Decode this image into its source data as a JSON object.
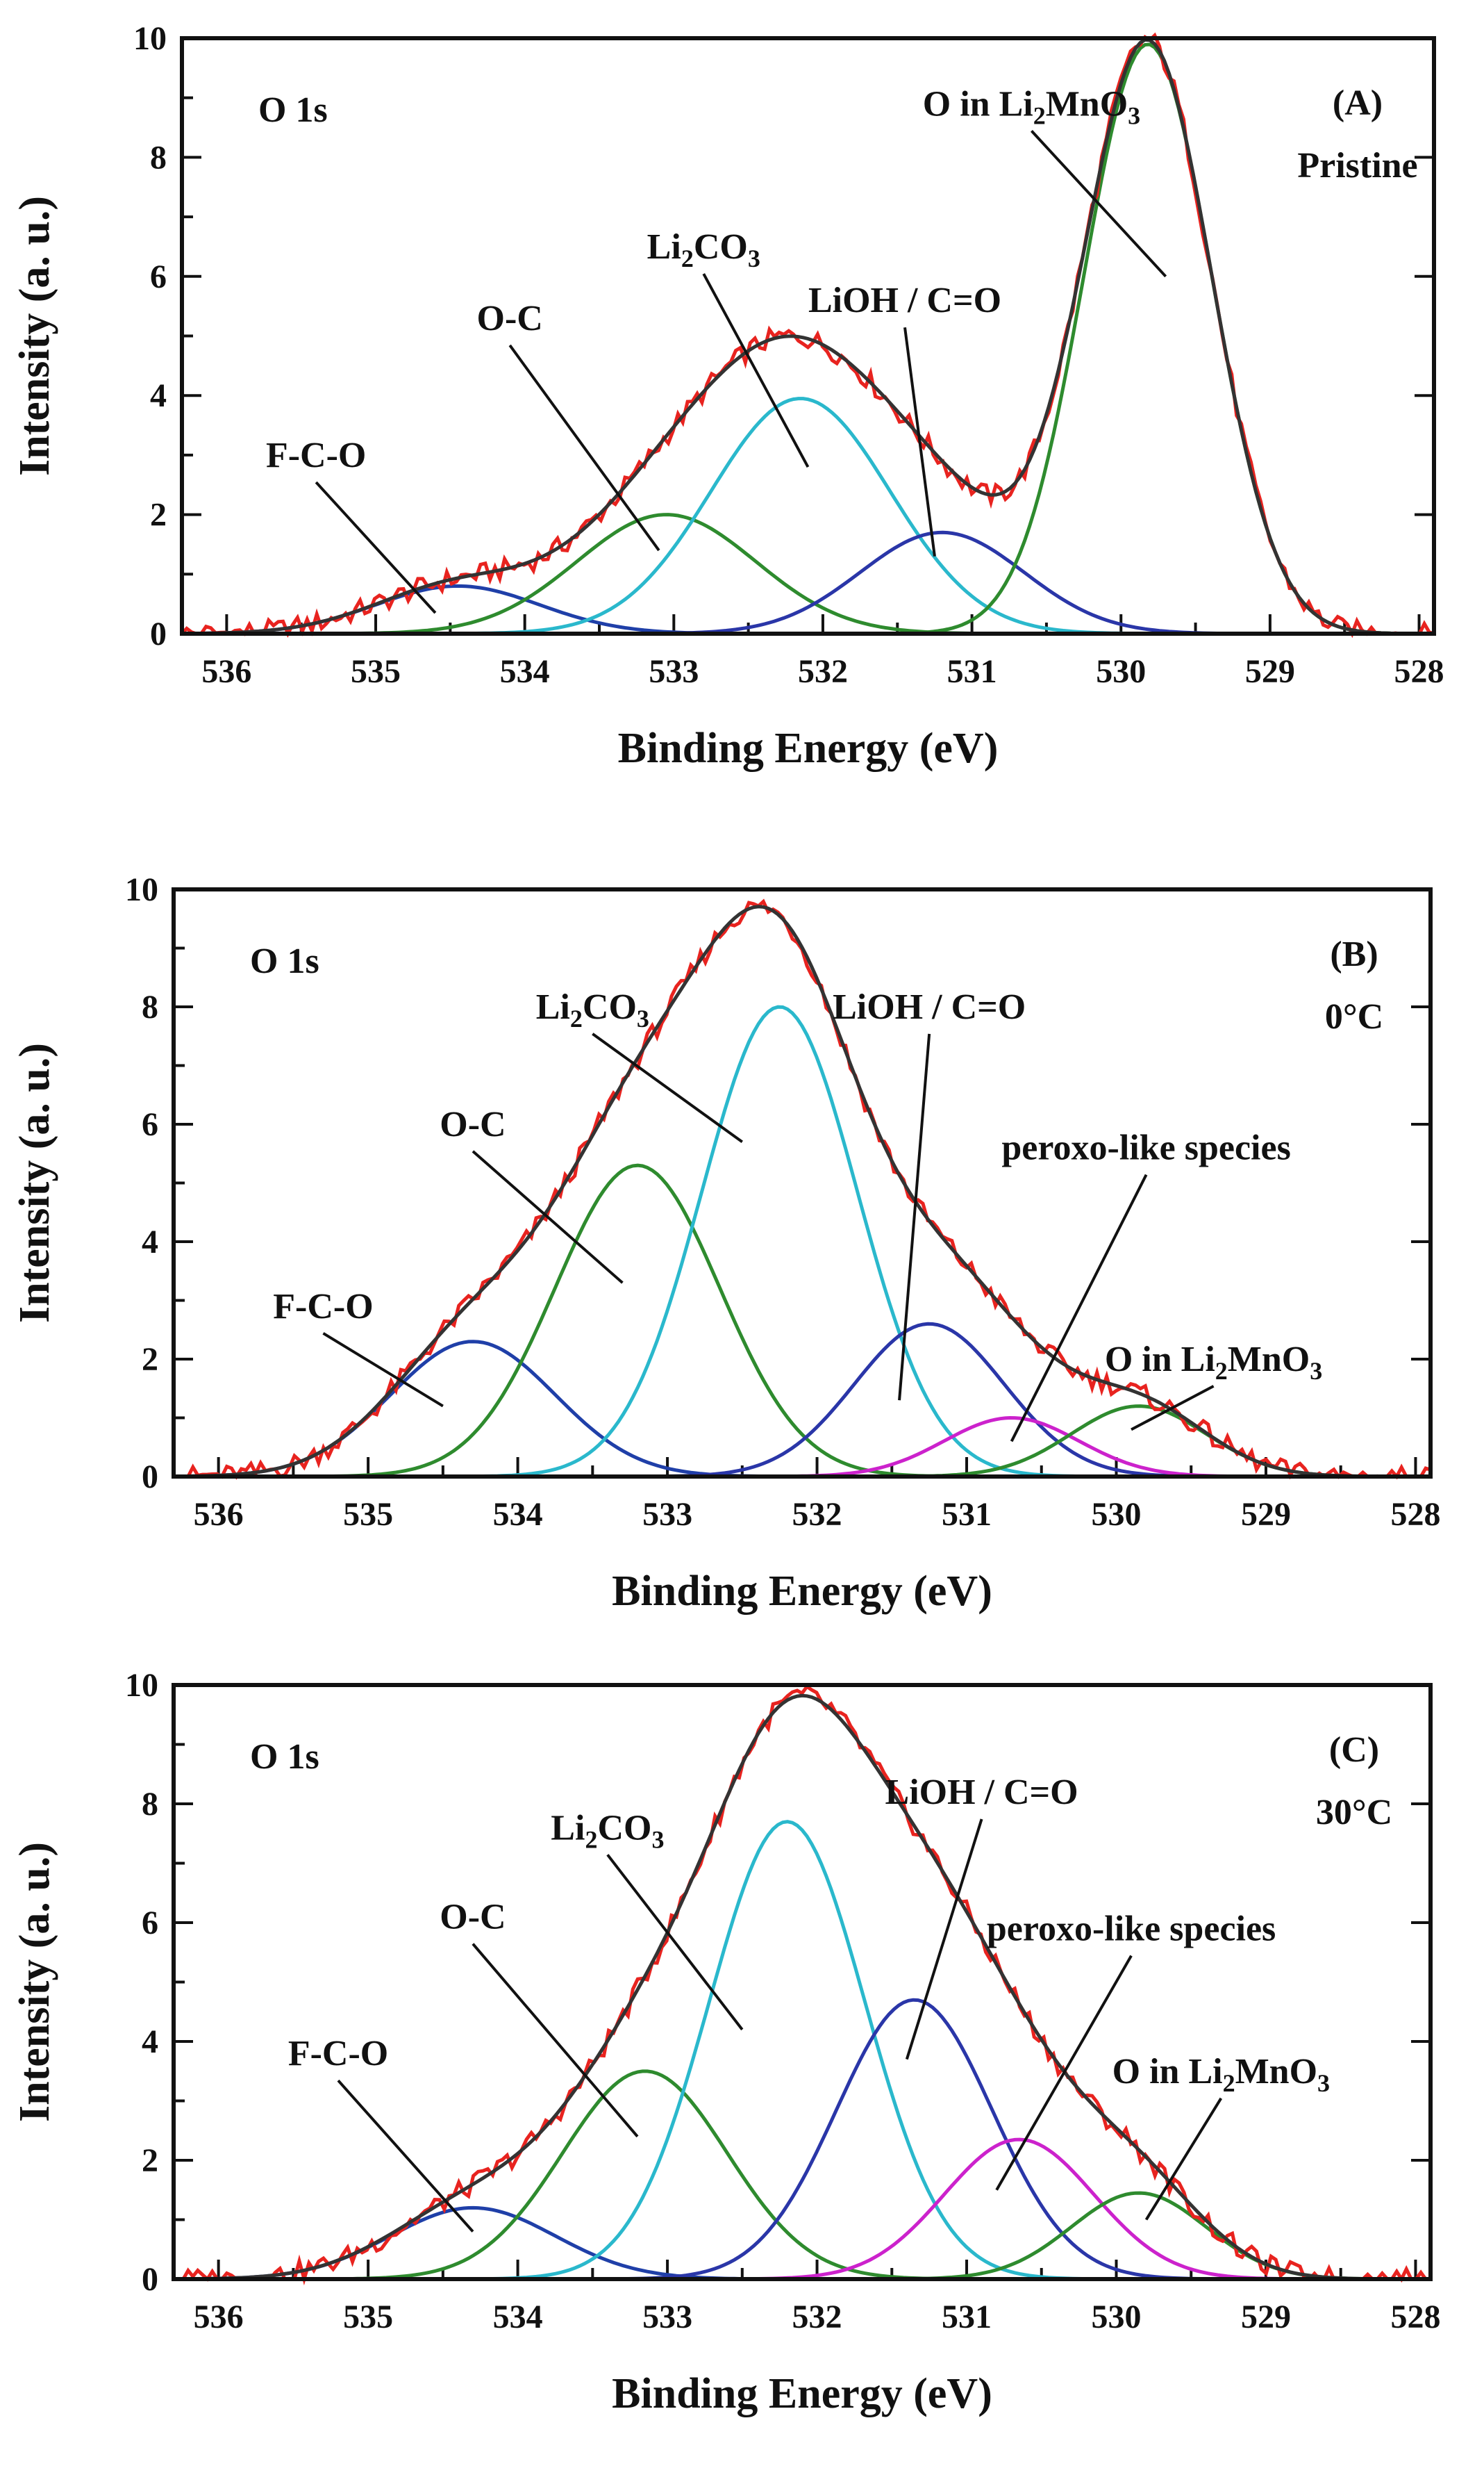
{
  "chart_data": [
    {
      "type": "line",
      "panel": "(A)",
      "title": "O 1s",
      "condition": "Pristine",
      "xlabel": "Binding Energy (eV)",
      "ylabel": "Intensity (a. u.)",
      "xlim": [
        536.3,
        527.9
      ],
      "ylim": [
        0,
        10
      ],
      "x_ticks": [
        536,
        535,
        534,
        533,
        532,
        531,
        530,
        529,
        528
      ],
      "y_ticks": [
        0,
        2,
        4,
        6,
        8,
        10
      ],
      "components": [
        {
          "name": "F-C-O",
          "center": 534.45,
          "height": 0.8,
          "width": 0.55,
          "color": "#1f3fa8",
          "label": "F-C-O"
        },
        {
          "name": "O-C",
          "center": 533.05,
          "height": 2.0,
          "width": 0.6,
          "color": "#2e8b2e",
          "label": "O-C"
        },
        {
          "name": "Li2CO3",
          "center": 532.15,
          "height": 3.95,
          "width": 0.6,
          "color": "#2ab8cc",
          "label": "Li2CO3"
        },
        {
          "name": "LiOH / C=O",
          "center": 531.2,
          "height": 1.7,
          "width": 0.55,
          "color": "#2a36a8",
          "label": "LiOH / C=O"
        },
        {
          "name": "O in Li2MnO3",
          "center": 529.82,
          "height": 9.9,
          "width": 0.43,
          "color": "#2e8b2e",
          "label": "O in Li2MnO3"
        }
      ],
      "labels": [
        {
          "text": "F-C-O",
          "x": 535.4,
          "y": 2.8,
          "target": [
            534.6,
            0.35
          ]
        },
        {
          "text": "O-C",
          "x": 534.1,
          "y": 5.1,
          "target": [
            533.1,
            1.4
          ]
        },
        {
          "text": "Li2CO3",
          "x": 532.8,
          "y": 6.3,
          "target": [
            532.1,
            2.8
          ]
        },
        {
          "text": "LiOH / C=O",
          "x": 531.45,
          "y": 5.4,
          "target": [
            531.25,
            1.3
          ]
        },
        {
          "text": "O in Li2MnO3",
          "x": 530.6,
          "y": 8.7,
          "target": [
            529.7,
            6.0
          ]
        }
      ]
    },
    {
      "type": "line",
      "panel": "(B)",
      "title": "O 1s",
      "condition": "0°C",
      "xlabel": "Binding Energy (eV)",
      "ylabel": "Intensity (a. u.)",
      "xlim": [
        536.3,
        527.9
      ],
      "ylim": [
        0,
        10
      ],
      "x_ticks": [
        536,
        535,
        534,
        533,
        532,
        531,
        530,
        529,
        528
      ],
      "y_ticks": [
        0,
        2,
        4,
        6,
        8,
        10
      ],
      "components": [
        {
          "name": "F-C-O",
          "center": 534.3,
          "height": 2.3,
          "width": 0.55,
          "color": "#1f3fa8",
          "label": "F-C-O"
        },
        {
          "name": "O-C",
          "center": 533.2,
          "height": 5.3,
          "width": 0.55,
          "color": "#2e8b2e",
          "label": "O-C"
        },
        {
          "name": "Li2CO3",
          "center": 532.25,
          "height": 8.0,
          "width": 0.52,
          "color": "#2ab8cc",
          "label": "Li2CO3"
        },
        {
          "name": "LiOH / C=O",
          "center": 531.25,
          "height": 2.6,
          "width": 0.5,
          "color": "#2a36a8",
          "label": "LiOH / C=O"
        },
        {
          "name": "peroxo-like species",
          "center": 530.7,
          "height": 1.0,
          "width": 0.45,
          "color": "#cc22cc",
          "label": "peroxo-like species"
        },
        {
          "name": "O in Li2MnO3",
          "center": 529.85,
          "height": 1.2,
          "width": 0.45,
          "color": "#2e8b2e",
          "label": "O in Li2MnO3"
        }
      ],
      "labels": [
        {
          "text": "F-C-O",
          "x": 535.3,
          "y": 2.7,
          "target": [
            534.5,
            1.2
          ]
        },
        {
          "text": "O-C",
          "x": 534.3,
          "y": 5.8,
          "target": [
            533.3,
            3.3
          ]
        },
        {
          "text": "Li2CO3",
          "x": 533.5,
          "y": 7.8,
          "target": [
            532.5,
            5.7
          ]
        },
        {
          "text": "LiOH / C=O",
          "x": 531.25,
          "y": 7.8,
          "target": [
            531.45,
            1.3
          ]
        },
        {
          "text": "peroxo-like species",
          "x": 529.8,
          "y": 5.4,
          "target": [
            530.7,
            0.6
          ]
        },
        {
          "text": "O in Li2MnO3",
          "x": 529.35,
          "y": 1.8,
          "target": [
            529.9,
            0.8
          ]
        }
      ]
    },
    {
      "type": "line",
      "panel": "(C)",
      "title": "O 1s",
      "condition": "30°C",
      "xlabel": "Binding Energy (eV)",
      "ylabel": "Intensity (a. u.)",
      "xlim": [
        536.3,
        527.9
      ],
      "ylim": [
        0,
        10
      ],
      "x_ticks": [
        536,
        535,
        534,
        533,
        532,
        531,
        530,
        529,
        528
      ],
      "y_ticks": [
        0,
        2,
        4,
        6,
        8,
        10
      ],
      "components": [
        {
          "name": "F-C-O",
          "center": 534.3,
          "height": 1.2,
          "width": 0.55,
          "color": "#1f3fa8",
          "label": "F-C-O"
        },
        {
          "name": "O-C",
          "center": 533.15,
          "height": 3.5,
          "width": 0.55,
          "color": "#2e8b2e",
          "label": "O-C"
        },
        {
          "name": "Li2CO3",
          "center": 532.2,
          "height": 7.7,
          "width": 0.52,
          "color": "#2ab8cc",
          "label": "Li2CO3"
        },
        {
          "name": "LiOH / C=O",
          "center": 531.35,
          "height": 4.7,
          "width": 0.52,
          "color": "#2a36a8",
          "label": "LiOH / C=O"
        },
        {
          "name": "peroxo-like species",
          "center": 530.65,
          "height": 2.35,
          "width": 0.5,
          "color": "#cc22cc",
          "label": "peroxo-like species"
        },
        {
          "name": "O in Li2MnO3",
          "center": 529.85,
          "height": 1.45,
          "width": 0.45,
          "color": "#2e8b2e",
          "label": "O in Li2MnO3"
        }
      ],
      "labels": [
        {
          "text": "F-C-O",
          "x": 535.2,
          "y": 3.6,
          "target": [
            534.3,
            0.8
          ]
        },
        {
          "text": "O-C",
          "x": 534.3,
          "y": 5.9,
          "target": [
            533.2,
            2.4
          ]
        },
        {
          "text": "Li2CO3",
          "x": 533.4,
          "y": 7.4,
          "target": [
            532.5,
            4.2
          ]
        },
        {
          "text": "LiOH / C=O",
          "x": 530.9,
          "y": 8.0,
          "target": [
            531.4,
            3.7
          ]
        },
        {
          "text": "peroxo-like species",
          "x": 529.9,
          "y": 5.7,
          "target": [
            530.8,
            1.5
          ]
        },
        {
          "text": "O in Li2MnO3",
          "x": 529.3,
          "y": 3.3,
          "target": [
            529.8,
            1.0
          ]
        }
      ]
    }
  ],
  "styles": {
    "envelope_color": "#333333",
    "experimental_color": "#e8231f"
  }
}
